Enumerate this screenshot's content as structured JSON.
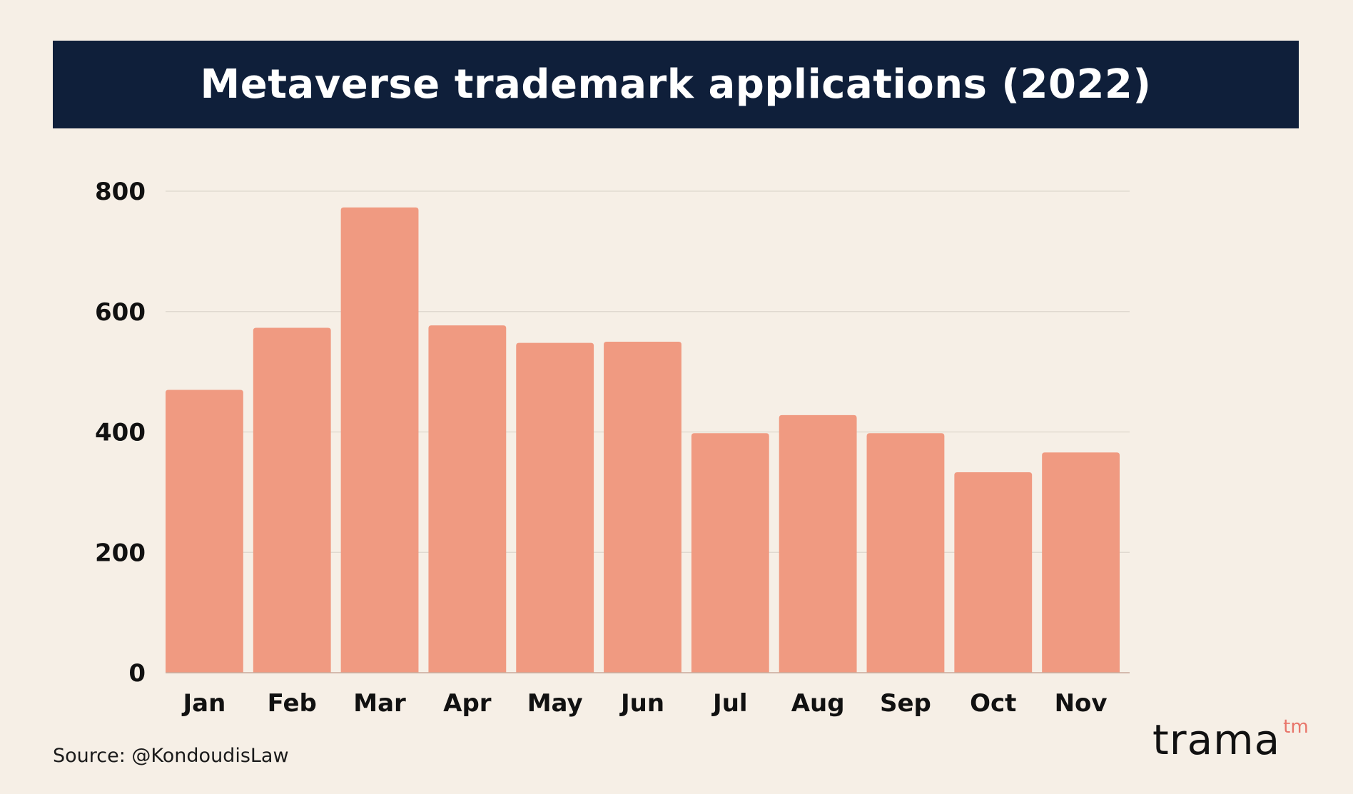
{
  "colors": {
    "background": "#f6efe6",
    "banner": "#0f1f3a",
    "bar": "#f09a81",
    "grid": "#ddd6cc",
    "accent": "#e8756a"
  },
  "chart_data": {
    "type": "bar",
    "title": "Metaverse trademark applications (2022)",
    "xlabel": "",
    "ylabel": "",
    "categories": [
      "Jan",
      "Feb",
      "Mar",
      "Apr",
      "May",
      "Jun",
      "Jul",
      "Aug",
      "Sep",
      "Oct",
      "Nov"
    ],
    "values": [
      470,
      573,
      773,
      577,
      548,
      550,
      398,
      428,
      398,
      333,
      366
    ],
    "ylim": [
      0,
      800
    ],
    "yticks": [
      0,
      200,
      400,
      600,
      800
    ],
    "grid": true,
    "legend": "none"
  },
  "footer": {
    "source": "Source: @KondoudisLaw",
    "brand": "trama",
    "brand_mark": "tm"
  }
}
